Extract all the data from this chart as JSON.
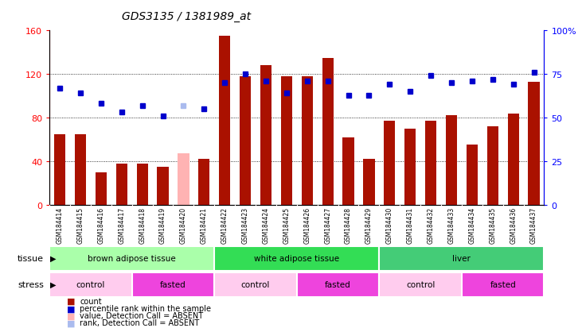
{
  "title": "GDS3135 / 1381989_at",
  "samples": [
    "GSM184414",
    "GSM184415",
    "GSM184416",
    "GSM184417",
    "GSM184418",
    "GSM184419",
    "GSM184420",
    "GSM184421",
    "GSM184422",
    "GSM184423",
    "GSM184424",
    "GSM184425",
    "GSM184426",
    "GSM184427",
    "GSM184428",
    "GSM184429",
    "GSM184430",
    "GSM184431",
    "GSM184432",
    "GSM184433",
    "GSM184434",
    "GSM184435",
    "GSM184436",
    "GSM184437"
  ],
  "bar_values": [
    65,
    65,
    30,
    38,
    38,
    35,
    47,
    42,
    155,
    118,
    128,
    118,
    118,
    135,
    62,
    42,
    77,
    70,
    77,
    82,
    55,
    72,
    84,
    113
  ],
  "bar_colors": [
    "#aa1100",
    "#aa1100",
    "#aa1100",
    "#aa1100",
    "#aa1100",
    "#aa1100",
    "#ffb3b3",
    "#aa1100",
    "#aa1100",
    "#aa1100",
    "#aa1100",
    "#aa1100",
    "#aa1100",
    "#aa1100",
    "#aa1100",
    "#aa1100",
    "#aa1100",
    "#aa1100",
    "#aa1100",
    "#aa1100",
    "#aa1100",
    "#aa1100",
    "#aa1100",
    "#aa1100"
  ],
  "rank_values": [
    67,
    64,
    58,
    53,
    57,
    51,
    57,
    55,
    70,
    75,
    71,
    64,
    71,
    71,
    63,
    63,
    69,
    65,
    74,
    70,
    71,
    72,
    69,
    76
  ],
  "rank_colors": [
    "#0000cc",
    "#0000cc",
    "#0000cc",
    "#0000cc",
    "#0000cc",
    "#0000cc",
    "#aabbee",
    "#0000cc",
    "#0000cc",
    "#0000cc",
    "#0000cc",
    "#0000cc",
    "#0000cc",
    "#0000cc",
    "#0000cc",
    "#0000cc",
    "#0000cc",
    "#0000cc",
    "#0000cc",
    "#0000cc",
    "#0000cc",
    "#0000cc",
    "#0000cc",
    "#0000cc"
  ],
  "ylim_left": [
    0,
    160
  ],
  "ylim_right": [
    0,
    100
  ],
  "yticks_left": [
    0,
    40,
    80,
    120,
    160
  ],
  "ytick_labels_left": [
    "0",
    "40",
    "80",
    "120",
    "160"
  ],
  "yticks_right": [
    0,
    25,
    50,
    75,
    100
  ],
  "ytick_labels_right": [
    "0",
    "25",
    "50",
    "75",
    "100%"
  ],
  "tissue_groups": [
    {
      "label": "brown adipose tissue",
      "start": 0,
      "end": 8,
      "color": "#aaffaa"
    },
    {
      "label": "white adipose tissue",
      "start": 8,
      "end": 16,
      "color": "#33dd55"
    },
    {
      "label": "liver",
      "start": 16,
      "end": 24,
      "color": "#44cc77"
    }
  ],
  "stress_groups": [
    {
      "label": "control",
      "start": 0,
      "end": 4,
      "color": "#ffccee"
    },
    {
      "label": "fasted",
      "start": 4,
      "end": 8,
      "color": "#ee44dd"
    },
    {
      "label": "control",
      "start": 8,
      "end": 12,
      "color": "#ffccee"
    },
    {
      "label": "fasted",
      "start": 12,
      "end": 16,
      "color": "#ee44dd"
    },
    {
      "label": "control",
      "start": 16,
      "end": 20,
      "color": "#ffccee"
    },
    {
      "label": "fasted",
      "start": 20,
      "end": 24,
      "color": "#ee44dd"
    }
  ],
  "legend_items": [
    {
      "label": "count",
      "color": "#aa1100"
    },
    {
      "label": "percentile rank within the sample",
      "color": "#0000cc"
    },
    {
      "label": "value, Detection Call = ABSENT",
      "color": "#ffb3b3"
    },
    {
      "label": "rank, Detection Call = ABSENT",
      "color": "#aabbee"
    }
  ],
  "tissue_label": "tissue",
  "stress_label": "stress",
  "bar_width": 0.55,
  "background_color": "#ffffff"
}
